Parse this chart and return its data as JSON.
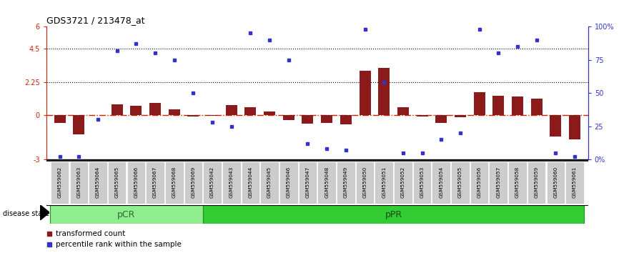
{
  "title": "GDS3721 / 213478_at",
  "samples": [
    "GSM559062",
    "GSM559063",
    "GSM559064",
    "GSM559065",
    "GSM559066",
    "GSM559067",
    "GSM559068",
    "GSM559069",
    "GSM559042",
    "GSM559043",
    "GSM559044",
    "GSM559045",
    "GSM559046",
    "GSM559047",
    "GSM559048",
    "GSM559049",
    "GSM559050",
    "GSM559051",
    "GSM559052",
    "GSM559053",
    "GSM559054",
    "GSM559055",
    "GSM559056",
    "GSM559057",
    "GSM559058",
    "GSM559059",
    "GSM559060",
    "GSM559061"
  ],
  "transformed_count": [
    -0.55,
    -1.3,
    0.0,
    0.75,
    0.65,
    0.85,
    0.4,
    -0.1,
    -0.05,
    0.7,
    0.55,
    0.25,
    -0.35,
    -0.6,
    -0.55,
    -0.65,
    3.0,
    3.2,
    0.55,
    -0.1,
    -0.55,
    -0.15,
    1.55,
    1.3,
    1.25,
    1.1,
    -1.45,
    -1.65
  ],
  "percentile_rank": [
    2,
    2,
    30,
    82,
    87,
    80,
    75,
    50,
    28,
    25,
    95,
    90,
    75,
    12,
    8,
    7,
    98,
    58,
    5,
    5,
    15,
    20,
    98,
    80,
    85,
    90,
    5,
    2
  ],
  "pCR_count": 8,
  "pPR_count": 20,
  "ylim": [
    -3,
    6
  ],
  "dot_color": "#3333cc",
  "bar_color": "#8b1a1a",
  "zero_line_color": "#cc2200",
  "pCR_color_light": "#b8f0b8",
  "pCR_color": "#90ee90",
  "pPR_color": "#32cd32",
  "label_bg_color": "#cccccc"
}
